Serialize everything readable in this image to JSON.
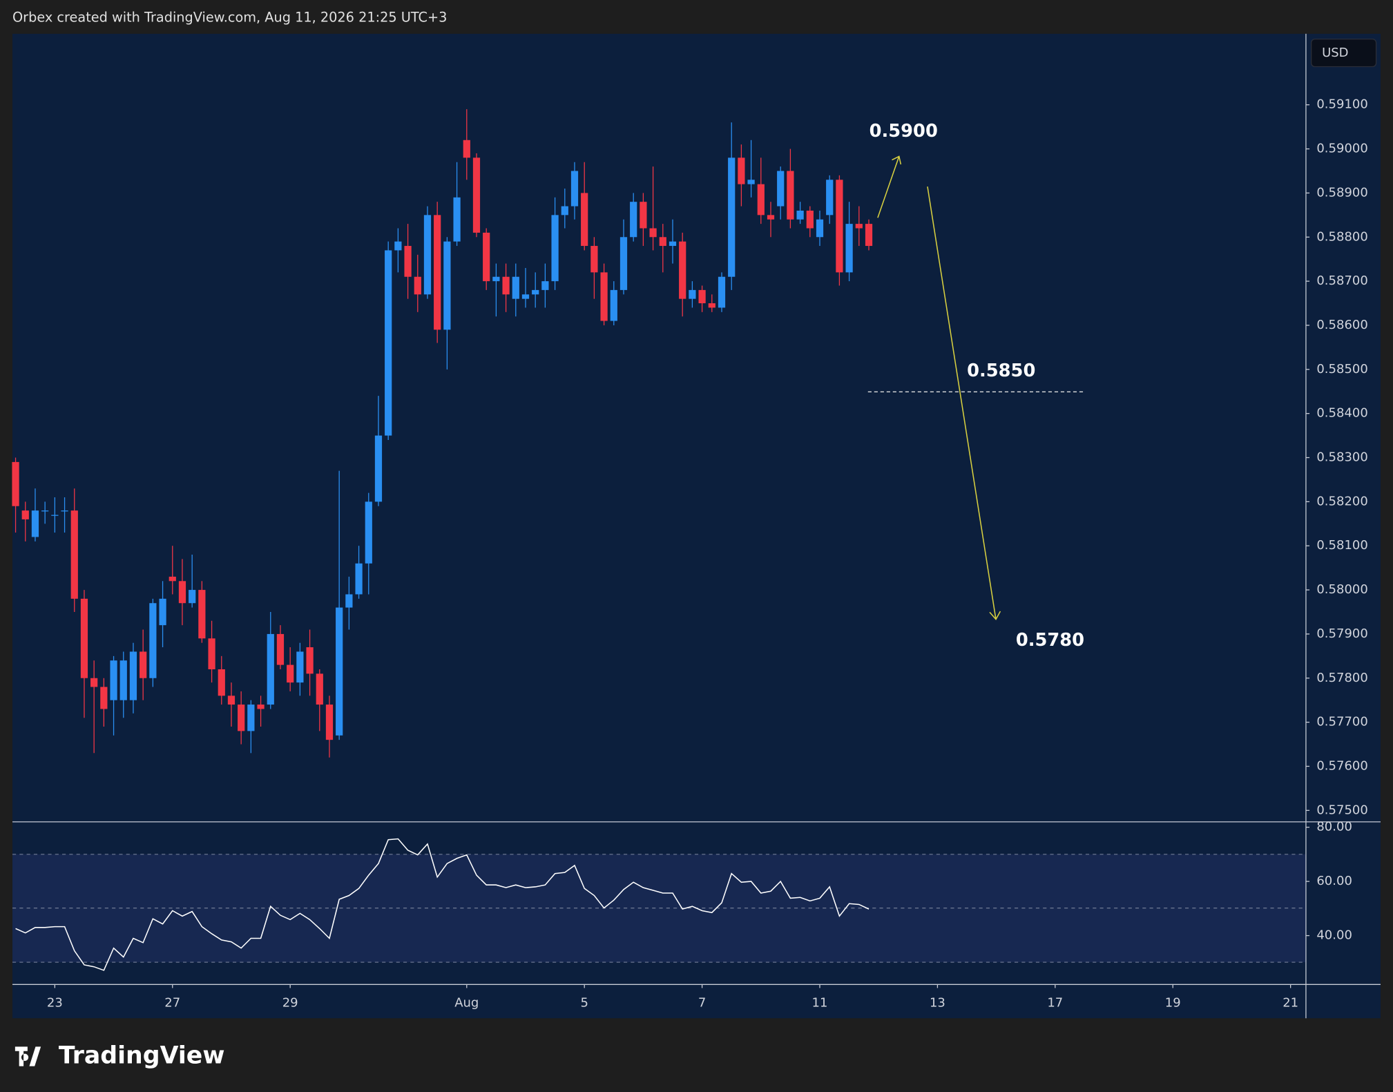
{
  "header": "Orbex created with TradingView.com, Aug 11, 2026 21:25 UTC+3",
  "brand": "TradingView",
  "currency": "USD",
  "annotations": [
    "0.5900",
    "0.5850",
    "0.5780"
  ],
  "chart_data": [
    {
      "type": "candlestick",
      "up_color": "#2a8ff2",
      "down_color": "#f23645",
      "x": [
        0,
        1,
        2,
        3,
        4,
        5,
        6,
        7,
        8,
        9,
        10,
        11,
        12,
        13,
        14,
        15,
        16,
        17,
        18,
        19,
        20,
        21,
        22,
        23,
        24,
        25,
        26,
        27,
        28,
        29,
        30,
        31,
        32,
        33,
        34,
        35,
        36,
        37,
        38,
        39,
        40,
        41,
        42,
        43,
        44,
        45,
        46,
        47,
        48,
        49,
        50,
        51,
        52,
        53,
        54,
        55,
        56,
        57,
        58,
        59,
        60,
        61,
        62,
        63,
        64,
        65,
        66,
        67,
        68,
        69,
        70,
        71,
        72,
        73,
        74,
        75,
        76,
        77,
        78,
        79,
        80,
        81,
        82,
        83,
        84,
        85,
        86,
        87
      ],
      "open": [
        0.5829,
        0.5818,
        0.5812,
        0.5818,
        0.5817,
        0.5818,
        0.5818,
        0.5798,
        0.578,
        0.5778,
        0.5775,
        0.5775,
        0.5775,
        0.5786,
        0.578,
        0.5792,
        0.5803,
        0.5802,
        0.5797,
        0.58,
        0.5789,
        0.5782,
        0.5776,
        0.5774,
        0.5768,
        0.5774,
        0.5774,
        0.579,
        0.5783,
        0.5779,
        0.5787,
        0.5781,
        0.5774,
        0.5767,
        0.5796,
        0.5799,
        0.5806,
        0.582,
        0.5835,
        0.5877,
        0.5878,
        0.5871,
        0.5867,
        0.5885,
        0.5859,
        0.5879,
        0.5902,
        0.5898,
        0.5881,
        0.587,
        0.5871,
        0.5866,
        0.5866,
        0.5867,
        0.5868,
        0.587,
        0.5885,
        0.5887,
        0.589,
        0.5878,
        0.5872,
        0.5861,
        0.5868,
        0.588,
        0.5888,
        0.5882,
        0.588,
        0.5878,
        0.5879,
        0.5866,
        0.5868,
        0.5865,
        0.5864,
        0.5871,
        0.5898,
        0.5892,
        0.5892,
        0.5885,
        0.5887,
        0.5895,
        0.5884,
        0.5886,
        0.588,
        0.5885,
        0.5893,
        0.5872,
        0.5883,
        0.5883
      ],
      "high": [
        0.583,
        0.582,
        0.5823,
        0.582,
        0.5821,
        0.5821,
        0.5823,
        0.58,
        0.5784,
        0.578,
        0.5785,
        0.5786,
        0.5788,
        0.5791,
        0.5798,
        0.5802,
        0.581,
        0.5807,
        0.5808,
        0.5802,
        0.5793,
        0.5785,
        0.5779,
        0.5777,
        0.5775,
        0.5776,
        0.5795,
        0.5792,
        0.5787,
        0.5788,
        0.5791,
        0.5782,
        0.5776,
        0.5827,
        0.5803,
        0.581,
        0.5822,
        0.5844,
        0.5879,
        0.5882,
        0.5883,
        0.5876,
        0.5887,
        0.5888,
        0.588,
        0.5897,
        0.5909,
        0.5899,
        0.5882,
        0.5874,
        0.5874,
        0.5874,
        0.5873,
        0.5872,
        0.5874,
        0.5889,
        0.5891,
        0.5897,
        0.5897,
        0.588,
        0.5874,
        0.587,
        0.5884,
        0.589,
        0.589,
        0.5896,
        0.5883,
        0.5884,
        0.5881,
        0.587,
        0.5869,
        0.5867,
        0.5872,
        0.5906,
        0.5901,
        0.5902,
        0.5898,
        0.5888,
        0.5896,
        0.59,
        0.5888,
        0.5887,
        0.5886,
        0.5894,
        0.5894,
        0.5888,
        0.5887,
        0.5884
      ],
      "low": [
        0.5813,
        0.5811,
        0.5811,
        0.5815,
        0.5813,
        0.5813,
        0.5795,
        0.5771,
        0.5763,
        0.5769,
        0.5767,
        0.5771,
        0.5772,
        0.5775,
        0.5778,
        0.5787,
        0.5799,
        0.5792,
        0.5796,
        0.5788,
        0.5779,
        0.5774,
        0.5769,
        0.5765,
        0.5763,
        0.5769,
        0.5773,
        0.5782,
        0.5777,
        0.5776,
        0.5776,
        0.5768,
        0.5762,
        0.5766,
        0.5791,
        0.5798,
        0.5799,
        0.5819,
        0.5834,
        0.5872,
        0.5866,
        0.5863,
        0.5866,
        0.5856,
        0.585,
        0.5878,
        0.5893,
        0.588,
        0.5868,
        0.5862,
        0.5863,
        0.5862,
        0.5864,
        0.5864,
        0.5864,
        0.5868,
        0.5882,
        0.5884,
        0.5877,
        0.5866,
        0.586,
        0.586,
        0.5867,
        0.5879,
        0.5878,
        0.5877,
        0.5872,
        0.5874,
        0.5862,
        0.5864,
        0.5863,
        0.5863,
        0.5863,
        0.5868,
        0.5887,
        0.5889,
        0.5883,
        0.588,
        0.5884,
        0.5882,
        0.5883,
        0.588,
        0.5878,
        0.5883,
        0.5869,
        0.587,
        0.5878,
        0.5877
      ],
      "close": [
        0.5819,
        0.5816,
        0.5818,
        0.5818,
        0.5817,
        0.5818,
        0.5798,
        0.578,
        0.5778,
        0.5773,
        0.5784,
        0.5784,
        0.5786,
        0.578,
        0.5797,
        0.5798,
        0.5802,
        0.5797,
        0.58,
        0.5789,
        0.5782,
        0.5776,
        0.5774,
        0.5768,
        0.5774,
        0.5773,
        0.579,
        0.5783,
        0.5779,
        0.5786,
        0.5781,
        0.5774,
        0.5766,
        0.5796,
        0.5799,
        0.5806,
        0.582,
        0.5835,
        0.5877,
        0.5879,
        0.5871,
        0.5867,
        0.5885,
        0.5859,
        0.5879,
        0.5889,
        0.5898,
        0.5881,
        0.587,
        0.5871,
        0.5867,
        0.5871,
        0.5867,
        0.5868,
        0.587,
        0.5885,
        0.5887,
        0.5895,
        0.5878,
        0.5872,
        0.5861,
        0.5868,
        0.588,
        0.5888,
        0.5882,
        0.588,
        0.5878,
        0.5879,
        0.5866,
        0.5868,
        0.5865,
        0.5864,
        0.5871,
        0.5898,
        0.5892,
        0.5893,
        0.5885,
        0.5884,
        0.5895,
        0.5884,
        0.5886,
        0.5882,
        0.5884,
        0.5893,
        0.5872,
        0.5883,
        0.5882,
        0.5878
      ],
      "xlim": [
        -0.32,
        131.57
      ],
      "xticks": [
        {
          "value": 4,
          "label": "23"
        },
        {
          "value": 16,
          "label": "27"
        },
        {
          "value": 28,
          "label": "29"
        },
        {
          "value": 46,
          "label": "Aug"
        },
        {
          "value": 58,
          "label": "5"
        },
        {
          "value": 70,
          "label": "7"
        },
        {
          "value": 82,
          "label": "11"
        },
        {
          "value": 94,
          "label": "13"
        },
        {
          "value": 106,
          "label": "17"
        },
        {
          "value": 118,
          "label": "19"
        },
        {
          "value": 130,
          "label": "21"
        }
      ],
      "ylim": [
        0.57474,
        0.59261
      ],
      "yticks": [
        {
          "value": 0.591,
          "label": "0.59100"
        },
        {
          "value": 0.59,
          "label": "0.59000"
        },
        {
          "value": 0.589,
          "label": "0.58900"
        },
        {
          "value": 0.588,
          "label": "0.58800"
        },
        {
          "value": 0.587,
          "label": "0.58700"
        },
        {
          "value": 0.586,
          "label": "0.58600"
        },
        {
          "value": 0.585,
          "label": "0.58500"
        },
        {
          "value": 0.584,
          "label": "0.58400"
        },
        {
          "value": 0.583,
          "label": "0.58300"
        },
        {
          "value": 0.582,
          "label": "0.58200"
        },
        {
          "value": 0.581,
          "label": "0.58100"
        },
        {
          "value": 0.58,
          "label": "0.58000"
        },
        {
          "value": 0.579,
          "label": "0.57900"
        },
        {
          "value": 0.578,
          "label": "0.57800"
        },
        {
          "value": 0.577,
          "label": "0.57700"
        },
        {
          "value": 0.576,
          "label": "0.57600"
        },
        {
          "value": 0.575,
          "label": "0.57500"
        }
      ]
    },
    {
      "type": "line",
      "color": "#ffffff",
      "values": [
        42.6,
        41.0,
        43.0,
        43.0,
        43.3,
        43.3,
        34.4,
        29.2,
        28.5,
        27.2,
        35.4,
        32.1,
        39.0,
        37.4,
        46.2,
        44.3,
        49.2,
        47.2,
        48.9,
        43.3,
        40.7,
        38.4,
        37.7,
        35.4,
        39.0,
        39.0,
        50.8,
        47.5,
        45.9,
        48.2,
        45.9,
        42.6,
        39.0,
        53.4,
        54.8,
        57.4,
        62.3,
        66.6,
        75.4,
        75.7,
        71.5,
        69.8,
        73.8,
        61.6,
        66.6,
        68.5,
        69.8,
        62.3,
        58.7,
        58.7,
        57.7,
        58.7,
        57.7,
        58.0,
        58.7,
        62.9,
        63.3,
        65.9,
        57.4,
        54.8,
        50.2,
        53.1,
        57.0,
        59.7,
        57.7,
        56.7,
        55.7,
        55.7,
        49.8,
        50.8,
        49.2,
        48.5,
        52.1,
        62.9,
        59.7,
        60.0,
        55.7,
        56.4,
        60.0,
        53.8,
        54.1,
        52.8,
        53.8,
        58.0,
        47.2,
        51.8,
        51.5,
        49.8
      ],
      "ylim": [
        21.97,
        81.97
      ],
      "yticks": [
        {
          "value": 80,
          "label": "80.00"
        },
        {
          "value": 60,
          "label": "60.00"
        },
        {
          "value": 40,
          "label": "40.00"
        }
      ]
    }
  ]
}
